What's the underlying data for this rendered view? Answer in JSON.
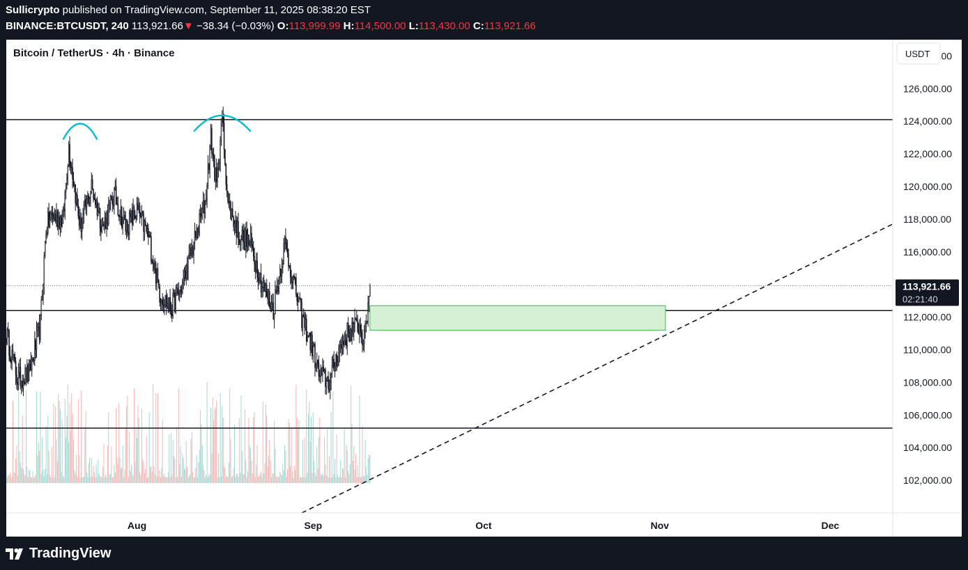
{
  "header": {
    "author": "Sullicrypto",
    "published_text": " published on TradingView.com, September 11, 2025 08:38:20 EST",
    "symbol": "BINANCE:BTCUSDT, 240",
    "last": "113,921.66",
    "change_arrow": "▼",
    "change": "−38.34 (−0.03%)",
    "o_label": "O:",
    "o_value": "113,999.99",
    "h_label": "H:",
    "h_value": "114,500.00",
    "l_label": "L:",
    "l_value": "113,430.00",
    "c_label": "C:",
    "c_value": "113,921.66"
  },
  "chart_title": "Bitcoin / TetherUS · 4h · Binance",
  "currency_label": "USDT",
  "price_label": {
    "price": "113,921.66",
    "countdown": "02:21:40"
  },
  "footer": {
    "brand": "TradingView"
  },
  "colors": {
    "up": "#26a69a",
    "down": "#ef5350",
    "arc": "#00bcd4",
    "zone_fill": "#d6f0d6",
    "zone_stroke": "#4caf50"
  },
  "chart_data": {
    "type": "candlestick",
    "title": "Bitcoin / TetherUS · 4h · Binance",
    "ylim": [
      100000,
      129000
    ],
    "y_ticks": [
      "102,000.00",
      "104,000.00",
      "106,000.00",
      "108,000.00",
      "110,000.00",
      "112,000.00",
      "114,000.00",
      "116,000.00",
      "118,000.00",
      "120,000.00",
      "122,000.00",
      "124,000.00",
      "126,000.00",
      "128,000.00"
    ],
    "y_tick_values": [
      102000,
      104000,
      106000,
      108000,
      110000,
      112000,
      114000,
      116000,
      118000,
      120000,
      122000,
      124000,
      126000,
      128000
    ],
    "x_range": [
      "2025-07-09",
      "2025-12-12"
    ],
    "x_ticks": [
      {
        "label": "Aug",
        "date": "2025-08-01"
      },
      {
        "label": "Sep",
        "date": "2025-09-01"
      },
      {
        "label": "Oct",
        "date": "2025-10-01"
      },
      {
        "label": "Nov",
        "date": "2025-11-01"
      },
      {
        "label": "Dec",
        "date": "2025-12-01"
      }
    ],
    "close_path": [
      {
        "date": "2025-07-09",
        "price": 111000
      },
      {
        "date": "2025-07-11",
        "price": 108200
      },
      {
        "date": "2025-07-13",
        "price": 108500
      },
      {
        "date": "2025-07-15",
        "price": 111500
      },
      {
        "date": "2025-07-16",
        "price": 117500
      },
      {
        "date": "2025-07-17",
        "price": 118200
      },
      {
        "date": "2025-07-19",
        "price": 118000
      },
      {
        "date": "2025-07-20",
        "price": 122500
      },
      {
        "date": "2025-07-22",
        "price": 117500
      },
      {
        "date": "2025-07-24",
        "price": 120000
      },
      {
        "date": "2025-07-26",
        "price": 117500
      },
      {
        "date": "2025-07-28",
        "price": 119500
      },
      {
        "date": "2025-07-30",
        "price": 117500
      },
      {
        "date": "2025-08-01",
        "price": 118500
      },
      {
        "date": "2025-08-03",
        "price": 117000
      },
      {
        "date": "2025-08-05",
        "price": 113500
      },
      {
        "date": "2025-08-07",
        "price": 112500
      },
      {
        "date": "2025-08-09",
        "price": 114000
      },
      {
        "date": "2025-08-11",
        "price": 116500
      },
      {
        "date": "2025-08-13",
        "price": 119000
      },
      {
        "date": "2025-08-14",
        "price": 123000
      },
      {
        "date": "2025-08-15",
        "price": 120000
      },
      {
        "date": "2025-08-16",
        "price": 124300
      },
      {
        "date": "2025-08-17",
        "price": 119000
      },
      {
        "date": "2025-08-19",
        "price": 117000
      },
      {
        "date": "2025-08-21",
        "price": 116500
      },
      {
        "date": "2025-08-23",
        "price": 114000
      },
      {
        "date": "2025-08-25",
        "price": 112500
      },
      {
        "date": "2025-08-27",
        "price": 116500
      },
      {
        "date": "2025-08-28",
        "price": 115000
      },
      {
        "date": "2025-08-30",
        "price": 112000
      },
      {
        "date": "2025-09-01",
        "price": 110000
      },
      {
        "date": "2025-09-02",
        "price": 108500
      },
      {
        "date": "2025-09-04",
        "price": 108000
      },
      {
        "date": "2025-09-05",
        "price": 109500
      },
      {
        "date": "2025-09-07",
        "price": 111000
      },
      {
        "date": "2025-09-09",
        "price": 111500
      },
      {
        "date": "2025-09-10",
        "price": 110500
      },
      {
        "date": "2025-09-11",
        "price": 113921.66
      }
    ],
    "last_price": 113921.66,
    "horizontal_levels": [
      124100,
      112400,
      105200
    ],
    "demand_zone": {
      "from": "2025-09-11",
      "to": "2025-11-02",
      "low": 111200,
      "high": 112700
    },
    "trendline": {
      "from": {
        "date": "2025-08-30",
        "price": 100000
      },
      "to": {
        "date": "2025-12-12",
        "price": 117700
      },
      "style": "dashed"
    },
    "double_top_arcs": [
      {
        "from": "2025-07-19",
        "to": "2025-07-25",
        "peak_price": 123900
      },
      {
        "from": "2025-08-11",
        "to": "2025-08-21",
        "peak_price": 124400
      }
    ],
    "volume_visible": true
  }
}
